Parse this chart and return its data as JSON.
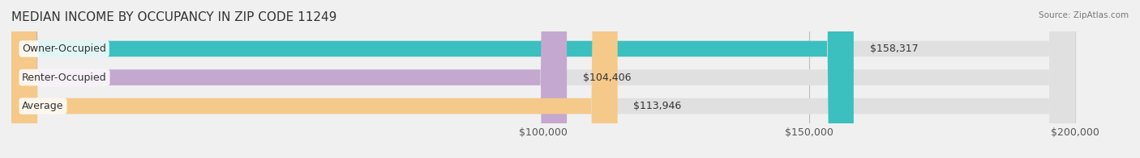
{
  "title": "MEDIAN INCOME BY OCCUPANCY IN ZIP CODE 11249",
  "source": "Source: ZipAtlas.com",
  "categories": [
    "Owner-Occupied",
    "Renter-Occupied",
    "Average"
  ],
  "values": [
    158317,
    104406,
    113946
  ],
  "bar_colors": [
    "#3bbfbf",
    "#c4a8d0",
    "#f5c98a"
  ],
  "bar_labels": [
    "$158,317",
    "$104,406",
    "$113,946"
  ],
  "xmin": 0,
  "xmax": 200000,
  "xticks": [
    100000,
    150000,
    200000
  ],
  "xtick_labels": [
    "$100,000",
    "$150,000",
    "$200,000"
  ],
  "background_color": "#f0f0f0",
  "bar_bg_color": "#e8e8e8",
  "bar_height": 0.55,
  "title_fontsize": 11,
  "label_fontsize": 9,
  "tick_fontsize": 9
}
